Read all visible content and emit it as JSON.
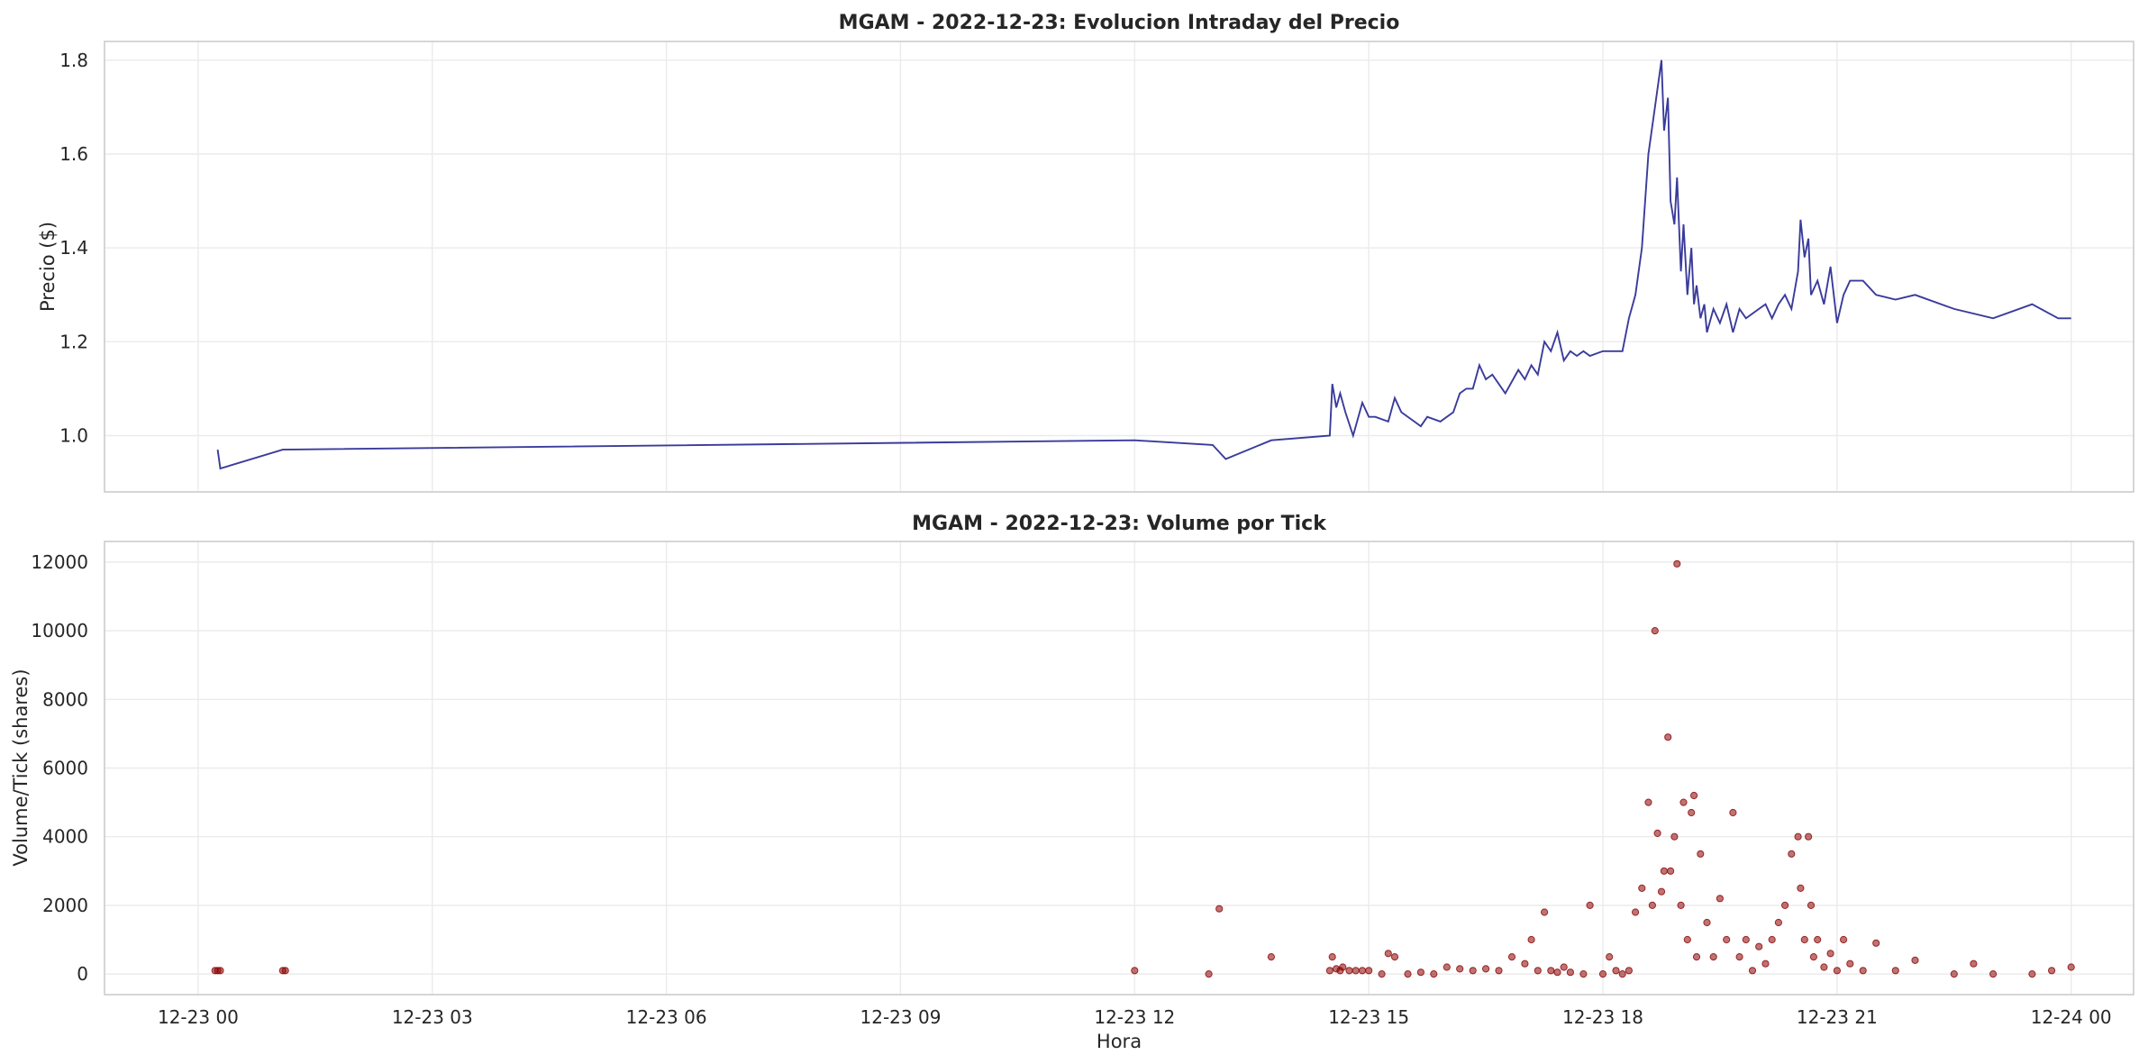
{
  "chart_data": [
    {
      "type": "line",
      "title": "MGAM - 2022-12-23: Evolucion Intraday del Precio",
      "xlabel": "",
      "ylabel": "Precio ($)",
      "xlim": [
        "2022-12-22 22:48",
        "2022-12-24 00:48"
      ],
      "ylim": [
        0.88,
        1.84
      ],
      "yticks": [
        "1.0",
        "1.2",
        "1.4",
        "1.6",
        "1.8"
      ],
      "grid": true,
      "color": "#3a3b9b",
      "series": [
        {
          "x": [
            "00:15",
            "00:17",
            "01:05",
            "12:00",
            "13:00",
            "13:10",
            "13:45",
            "14:30",
            "14:32",
            "14:35",
            "14:38",
            "14:42",
            "14:48",
            "14:55",
            "15:00",
            "15:05",
            "15:15",
            "15:20",
            "15:25",
            "15:35",
            "15:40",
            "15:45",
            "15:55",
            "16:05",
            "16:10",
            "16:15",
            "16:20",
            "16:25",
            "16:30",
            "16:35",
            "16:45",
            "16:55",
            "17:00",
            "17:05",
            "17:10",
            "17:15",
            "17:20",
            "17:25",
            "17:30",
            "17:35",
            "17:40",
            "17:45",
            "17:50",
            "18:00",
            "18:05",
            "18:15",
            "18:20",
            "18:25",
            "18:30",
            "18:35",
            "18:40",
            "18:45",
            "18:47",
            "18:50",
            "18:52",
            "18:55",
            "18:57",
            "19:00",
            "19:02",
            "19:05",
            "19:08",
            "19:10",
            "19:12",
            "19:15",
            "19:18",
            "19:20",
            "19:25",
            "19:30",
            "19:35",
            "19:40",
            "19:45",
            "19:50",
            "20:00",
            "20:05",
            "20:10",
            "20:15",
            "20:20",
            "20:25",
            "20:30",
            "20:32",
            "20:35",
            "20:38",
            "20:40",
            "20:45",
            "20:50",
            "20:55",
            "21:00",
            "21:05",
            "21:10",
            "21:20",
            "21:30",
            "21:45",
            "22:00",
            "22:30",
            "23:00",
            "23:30",
            "23:50",
            "24:00"
          ],
          "y": [
            0.97,
            0.93,
            0.97,
            0.99,
            0.98,
            0.95,
            0.99,
            1.0,
            1.11,
            1.06,
            1.09,
            1.05,
            1.0,
            1.07,
            1.04,
            1.04,
            1.03,
            1.08,
            1.05,
            1.03,
            1.02,
            1.04,
            1.03,
            1.05,
            1.09,
            1.1,
            1.1,
            1.15,
            1.12,
            1.13,
            1.09,
            1.14,
            1.12,
            1.15,
            1.13,
            1.2,
            1.18,
            1.22,
            1.16,
            1.18,
            1.17,
            1.18,
            1.17,
            1.18,
            1.18,
            1.18,
            1.25,
            1.3,
            1.4,
            1.6,
            1.7,
            1.8,
            1.65,
            1.72,
            1.5,
            1.45,
            1.55,
            1.35,
            1.45,
            1.3,
            1.4,
            1.28,
            1.32,
            1.25,
            1.28,
            1.22,
            1.27,
            1.24,
            1.28,
            1.22,
            1.27,
            1.25,
            1.27,
            1.28,
            1.25,
            1.28,
            1.3,
            1.27,
            1.35,
            1.46,
            1.38,
            1.42,
            1.3,
            1.33,
            1.28,
            1.36,
            1.24,
            1.3,
            1.33,
            1.33,
            1.3,
            1.29,
            1.3,
            1.27,
            1.25,
            1.28,
            1.25,
            1.25
          ]
        }
      ]
    },
    {
      "type": "scatter",
      "title": "MGAM - 2022-12-23: Volume por Tick",
      "xlabel": "Hora",
      "ylabel": "Volume/Tick (shares)",
      "xlim": [
        "2022-12-22 22:48",
        "2022-12-24 00:48"
      ],
      "ylim": [
        -600,
        12600
      ],
      "yticks": [
        "0",
        "2000",
        "4000",
        "6000",
        "8000",
        "10000",
        "12000"
      ],
      "xticks": [
        "12-23 00",
        "12-23 03",
        "12-23 06",
        "12-23 09",
        "12-23 12",
        "12-23 15",
        "12-23 18",
        "12-23 21",
        "12-24 00"
      ],
      "grid": true,
      "color": "#8b0000",
      "series": [
        {
          "x": [
            "00:13",
            "00:15",
            "00:17",
            "01:05",
            "01:07",
            "12:00",
            "12:57",
            "13:05",
            "13:45",
            "14:30",
            "14:32",
            "14:35",
            "14:38",
            "14:40",
            "14:45",
            "14:50",
            "14:55",
            "15:00",
            "15:10",
            "15:15",
            "15:20",
            "15:30",
            "15:40",
            "15:50",
            "16:00",
            "16:10",
            "16:20",
            "16:30",
            "16:40",
            "16:50",
            "17:00",
            "17:05",
            "17:10",
            "17:15",
            "17:20",
            "17:25",
            "17:30",
            "17:35",
            "17:45",
            "17:50",
            "18:00",
            "18:05",
            "18:10",
            "18:15",
            "18:20",
            "18:25",
            "18:30",
            "18:35",
            "18:38",
            "18:40",
            "18:42",
            "18:45",
            "18:47",
            "18:50",
            "18:52",
            "18:55",
            "18:57",
            "19:00",
            "19:02",
            "19:05",
            "19:08",
            "19:10",
            "19:12",
            "19:15",
            "19:20",
            "19:25",
            "19:30",
            "19:35",
            "19:40",
            "19:45",
            "19:50",
            "19:55",
            "20:00",
            "20:05",
            "20:10",
            "20:15",
            "20:20",
            "20:25",
            "20:30",
            "20:32",
            "20:35",
            "20:38",
            "20:40",
            "20:42",
            "20:45",
            "20:50",
            "20:55",
            "21:00",
            "21:05",
            "21:10",
            "21:20",
            "21:30",
            "21:45",
            "22:00",
            "22:30",
            "22:45",
            "23:00",
            "23:30",
            "23:45",
            "24:00"
          ],
          "y": [
            100,
            100,
            100,
            100,
            100,
            100,
            0,
            1900,
            500,
            100,
            500,
            150,
            100,
            200,
            100,
            100,
            100,
            100,
            0,
            600,
            500,
            0,
            50,
            0,
            200,
            150,
            100,
            150,
            100,
            500,
            300,
            1000,
            100,
            1800,
            100,
            50,
            200,
            50,
            0,
            2000,
            0,
            500,
            100,
            0,
            100,
            1800,
            2500,
            5000,
            2000,
            10000,
            4100,
            2400,
            3000,
            6900,
            3000,
            4000,
            11950,
            2000,
            5000,
            1000,
            4700,
            5200,
            500,
            3500,
            1500,
            500,
            2200,
            1000,
            4700,
            500,
            1000,
            100,
            800,
            300,
            1000,
            1500,
            2000,
            3500,
            4000,
            2500,
            1000,
            4000,
            2000,
            500,
            1000,
            200,
            600,
            100,
            1000,
            300,
            100,
            900,
            100,
            400,
            0,
            300,
            0,
            0,
            100,
            200
          ]
        }
      ]
    }
  ]
}
